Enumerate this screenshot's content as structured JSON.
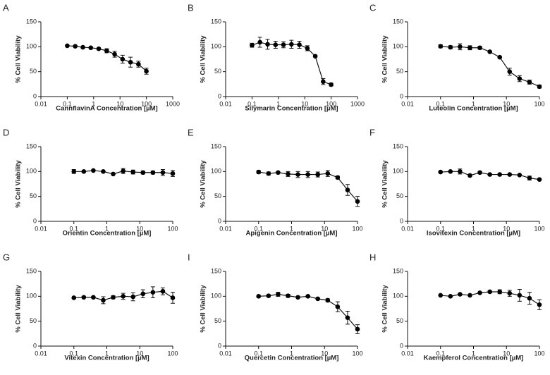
{
  "chart_data": [
    {
      "type": "line",
      "label": "A",
      "xlabel": "CannflavinA Concentration [µM]",
      "ylabel": "% Cell Viability",
      "log_x": true,
      "color": "#000000",
      "x": [
        0.1,
        0.2,
        0.39,
        0.78,
        1.56,
        3.13,
        6.25,
        12.5,
        25,
        50,
        100
      ],
      "values": [
        102,
        101,
        99,
        98,
        96,
        92,
        85,
        75,
        69,
        65,
        51
      ],
      "errors": [
        1,
        1,
        1,
        1,
        2,
        4,
        6,
        8,
        10,
        6,
        6
      ],
      "xlim": [
        0.01,
        1000
      ],
      "xticks": [
        0.01,
        0.1,
        1,
        10,
        100,
        1000
      ],
      "ylim": [
        0,
        150
      ],
      "yticks": [
        0,
        50,
        100,
        150
      ]
    },
    {
      "type": "line",
      "label": "B",
      "xlabel": "Silymarin Concentration [µM]",
      "ylabel": "% Cell Viability",
      "log_x": true,
      "color": "#000000",
      "x": [
        0.1,
        0.2,
        0.39,
        0.78,
        1.56,
        3.13,
        6.25,
        12.5,
        25,
        50,
        100
      ],
      "values": [
        103,
        109,
        105,
        104,
        104,
        105,
        104,
        97,
        81,
        30,
        24
      ],
      "errors": [
        4,
        10,
        10,
        7,
        6,
        8,
        7,
        5,
        1,
        6,
        3
      ],
      "xlim": [
        0.01,
        1000
      ],
      "xticks": [
        0.01,
        0.1,
        1,
        10,
        100,
        1000
      ],
      "ylim": [
        0,
        150
      ],
      "yticks": [
        0,
        50,
        100,
        150
      ]
    },
    {
      "type": "line",
      "label": "C",
      "xlabel": "Luteolin Concentration [µM]",
      "ylabel": "% Cell Viability",
      "log_x": true,
      "color": "#000000",
      "x": [
        0.1,
        0.2,
        0.39,
        0.78,
        1.56,
        3.13,
        6.25,
        12.5,
        25,
        50,
        100
      ],
      "values": [
        101,
        99,
        100,
        98,
        98,
        90,
        79,
        50,
        36,
        29,
        20
      ],
      "errors": [
        3,
        3,
        6,
        4,
        3,
        1,
        1,
        7,
        6,
        4,
        3
      ],
      "xlim": [
        0.01,
        100
      ],
      "xticks": [
        0.01,
        0.1,
        1,
        10,
        100
      ],
      "ylim": [
        0,
        150
      ],
      "yticks": [
        0,
        50,
        100,
        150
      ]
    },
    {
      "type": "line",
      "label": "D",
      "xlabel": "Orientin Concentration [µM]",
      "ylabel": "% Cell Viability",
      "log_x": true,
      "color": "#000000",
      "x": [
        0.1,
        0.2,
        0.39,
        0.78,
        1.56,
        3.13,
        6.25,
        12.5,
        25,
        50,
        100
      ],
      "values": [
        100,
        100,
        102,
        100,
        95,
        101,
        99,
        98,
        98,
        98,
        96
      ],
      "errors": [
        4,
        1,
        1,
        1,
        1,
        5,
        4,
        3,
        3,
        6,
        6
      ],
      "xlim": [
        0.01,
        100
      ],
      "xticks": [
        0.01,
        0.1,
        1,
        10,
        100
      ],
      "ylim": [
        0,
        150
      ],
      "yticks": [
        0,
        50,
        100,
        150
      ]
    },
    {
      "type": "line",
      "label": "E",
      "xlabel": "Apigenin Concentration [µM]",
      "ylabel": "% Cell Viability",
      "log_x": true,
      "color": "#000000",
      "x": [
        0.1,
        0.2,
        0.39,
        0.78,
        1.56,
        3.13,
        6.25,
        12.5,
        25,
        50,
        100
      ],
      "values": [
        99,
        96,
        98,
        95,
        94,
        94,
        94,
        96,
        88,
        63,
        40
      ],
      "errors": [
        3,
        3,
        1,
        5,
        6,
        6,
        5,
        6,
        3,
        11,
        10
      ],
      "xlim": [
        0.01,
        100
      ],
      "xticks": [
        0.01,
        0.1,
        1,
        10,
        100
      ],
      "ylim": [
        0,
        150
      ],
      "yticks": [
        0,
        50,
        100,
        150
      ]
    },
    {
      "type": "line",
      "label": "F",
      "xlabel": "Isovitexin Concentration [µM]",
      "ylabel": "% Cell Viability",
      "log_x": true,
      "color": "#000000",
      "x": [
        0.1,
        0.2,
        0.39,
        0.78,
        1.56,
        3.13,
        6.25,
        12.5,
        25,
        50,
        100
      ],
      "values": [
        99,
        100,
        100,
        92,
        98,
        94,
        94,
        94,
        93,
        87,
        84
      ],
      "errors": [
        1,
        1,
        5,
        1,
        2,
        1,
        1,
        1,
        1,
        4,
        2
      ],
      "xlim": [
        0.01,
        100
      ],
      "xticks": [
        0.01,
        0.1,
        1,
        10,
        100
      ],
      "ylim": [
        0,
        150
      ],
      "yticks": [
        0,
        50,
        100,
        150
      ]
    },
    {
      "type": "line",
      "label": "G",
      "xlabel": "Vitexin Concentration [µM]",
      "ylabel": "% Cell Viability",
      "log_x": true,
      "color": "#000000",
      "x": [
        0.1,
        0.2,
        0.39,
        0.78,
        1.56,
        3.13,
        6.25,
        12.5,
        25,
        50,
        100
      ],
      "values": [
        97,
        98,
        98,
        92,
        98,
        100,
        99,
        105,
        108,
        110,
        97
      ],
      "errors": [
        1,
        1,
        1,
        7,
        3,
        6,
        8,
        8,
        11,
        7,
        11
      ],
      "xlim": [
        0.01,
        100
      ],
      "xticks": [
        0.01,
        0.1,
        1,
        10,
        100
      ],
      "ylim": [
        0,
        150
      ],
      "yticks": [
        0,
        50,
        100,
        150
      ]
    },
    {
      "type": "line",
      "label": "I",
      "xlabel": "Quercetin Concentration [µM]",
      "ylabel": "% Cell Viability",
      "log_x": true,
      "color": "#000000",
      "x": [
        0.1,
        0.2,
        0.39,
        0.78,
        1.56,
        3.13,
        6.25,
        12.5,
        25,
        50,
        100
      ],
      "values": [
        100,
        101,
        104,
        101,
        98,
        100,
        95,
        92,
        79,
        57,
        34
      ],
      "errors": [
        2,
        2,
        4,
        3,
        1,
        2,
        1,
        3,
        10,
        13,
        9
      ],
      "xlim": [
        0.01,
        100
      ],
      "xticks": [
        0.01,
        0.1,
        1,
        10,
        100
      ],
      "ylim": [
        0,
        150
      ],
      "yticks": [
        0,
        50,
        100,
        150
      ]
    },
    {
      "type": "line",
      "label": "H",
      "xlabel": "Kaempferol Concentration [µM]",
      "ylabel": "% Cell Viability",
      "log_x": true,
      "color": "#000000",
      "x": [
        0.1,
        0.2,
        0.39,
        0.78,
        1.56,
        3.13,
        6.25,
        12.5,
        25,
        50,
        100
      ],
      "values": [
        102,
        100,
        104,
        102,
        107,
        109,
        109,
        106,
        102,
        96,
        83
      ],
      "errors": [
        1,
        1,
        1,
        1,
        1,
        2,
        4,
        6,
        12,
        12,
        10
      ],
      "xlim": [
        0.01,
        100
      ],
      "xticks": [
        0.01,
        0.1,
        1,
        10,
        100
      ],
      "ylim": [
        0,
        150
      ],
      "yticks": [
        0,
        50,
        100,
        150
      ]
    }
  ]
}
